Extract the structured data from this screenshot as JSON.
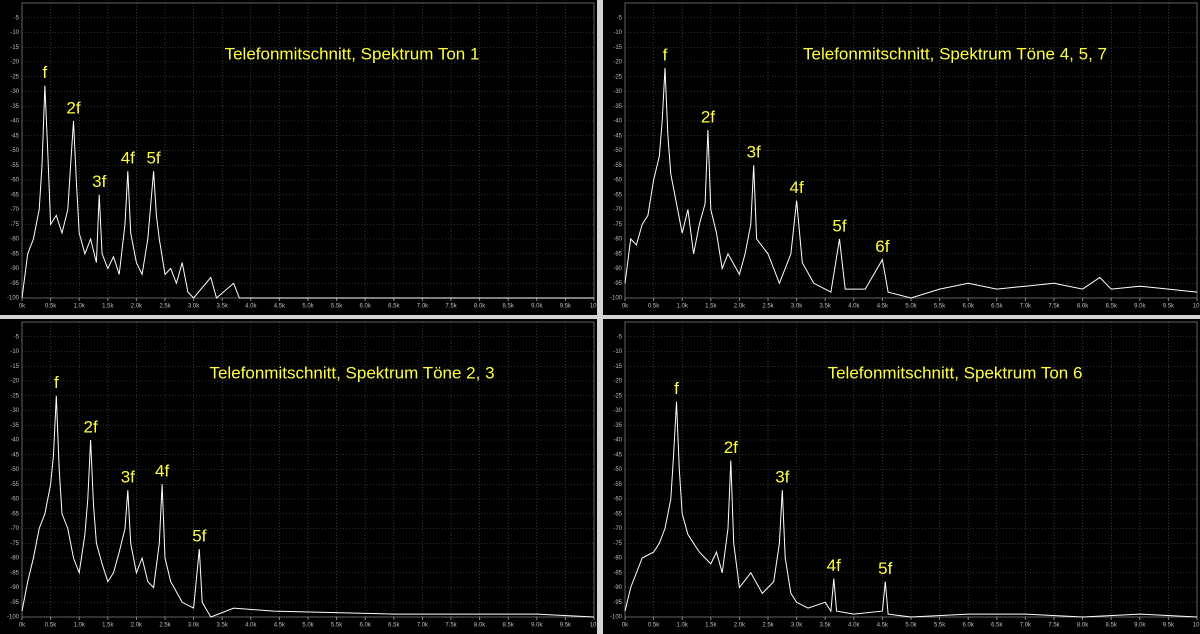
{
  "chart_data": [
    {
      "type": "line",
      "title": "Telefonmitschnitt, Spektrum Ton 1",
      "grid": true,
      "background": "#000000",
      "text_color": "#ffff40",
      "xlim": [
        0,
        10
      ],
      "ylim": [
        -100,
        0
      ],
      "xticks": [
        {
          "value": 0,
          "label": "0k"
        },
        {
          "value": 0.5,
          "label": "0.5k"
        },
        {
          "value": 1,
          "label": "1.0k"
        },
        {
          "value": 1.5,
          "label": "1.5k"
        },
        {
          "value": 2,
          "label": "2.0k"
        },
        {
          "value": 2.5,
          "label": "2.5k"
        },
        {
          "value": 3,
          "label": "3.0k"
        },
        {
          "value": 3.5,
          "label": "3.5k"
        },
        {
          "value": 4,
          "label": "4.0k"
        },
        {
          "value": 4.5,
          "label": "4.5k"
        },
        {
          "value": 5,
          "label": "5.0k"
        },
        {
          "value": 5.5,
          "label": "5.5k"
        },
        {
          "value": 6,
          "label": "6.0k"
        },
        {
          "value": 6.5,
          "label": "6.5k"
        },
        {
          "value": 7,
          "label": "7.0k"
        },
        {
          "value": 7.5,
          "label": "7.5k"
        },
        {
          "value": 8,
          "label": "8.0k"
        },
        {
          "value": 8.5,
          "label": "8.5k"
        },
        {
          "value": 9,
          "label": "9.0k"
        },
        {
          "value": 9.5,
          "label": "9.5k"
        },
        {
          "value": 10,
          "label": "10."
        }
      ],
      "yticks": [
        -5,
        -10,
        -15,
        -20,
        -25,
        -30,
        -35,
        -40,
        -45,
        -50,
        -55,
        -60,
        -65,
        -70,
        -75,
        -80,
        -85,
        -90,
        -95,
        -100
      ],
      "x": [
        0,
        0.1,
        0.2,
        0.3,
        0.35,
        0.4,
        0.45,
        0.5,
        0.6,
        0.7,
        0.8,
        0.85,
        0.9,
        0.95,
        1.0,
        1.1,
        1.2,
        1.3,
        1.35,
        1.4,
        1.5,
        1.6,
        1.7,
        1.8,
        1.85,
        1.9,
        2.0,
        2.1,
        2.2,
        2.3,
        2.35,
        2.4,
        2.5,
        2.6,
        2.7,
        2.8,
        2.9,
        3.0,
        3.3,
        3.4,
        3.7,
        3.8,
        4.5,
        10
      ],
      "series": [
        {
          "color": "#ffffff",
          "values": [
            -100,
            -85,
            -80,
            -70,
            -55,
            -28,
            -50,
            -75,
            -72,
            -78,
            -70,
            -55,
            -40,
            -60,
            -78,
            -85,
            -80,
            -88,
            -65,
            -85,
            -90,
            -86,
            -92,
            -75,
            -57,
            -78,
            -88,
            -92,
            -80,
            -57,
            -72,
            -80,
            -92,
            -90,
            -95,
            -88,
            -98,
            -100,
            -93,
            -100,
            -95,
            -100,
            -100,
            -100
          ]
        }
      ],
      "annotations": [
        {
          "text": "f",
          "x": 0.4,
          "y": -28
        },
        {
          "text": "2f",
          "x": 0.9,
          "y": -40
        },
        {
          "text": "3f",
          "x": 1.35,
          "y": -65
        },
        {
          "text": "4f",
          "x": 1.85,
          "y": -57
        },
        {
          "text": "5f",
          "x": 2.3,
          "y": -57
        }
      ]
    },
    {
      "type": "line",
      "title": "Telefonmitschnitt, Spektrum Töne 4, 5, 7",
      "grid": true,
      "background": "#000000",
      "text_color": "#ffff40",
      "xlim": [
        0,
        10
      ],
      "ylim": [
        -100,
        0
      ],
      "xticks": [
        {
          "value": 0,
          "label": "0k"
        },
        {
          "value": 0.5,
          "label": "0.5k"
        },
        {
          "value": 1,
          "label": "1.0k"
        },
        {
          "value": 1.5,
          "label": "1.5k"
        },
        {
          "value": 2,
          "label": "2.0k"
        },
        {
          "value": 2.5,
          "label": "2.5k"
        },
        {
          "value": 3,
          "label": "3.0k"
        },
        {
          "value": 3.5,
          "label": "3.5k"
        },
        {
          "value": 4,
          "label": "4.0k"
        },
        {
          "value": 4.5,
          "label": "4.5k"
        },
        {
          "value": 5,
          "label": "5.0k"
        },
        {
          "value": 5.5,
          "label": "5.5k"
        },
        {
          "value": 6,
          "label": "6.0k"
        },
        {
          "value": 6.5,
          "label": "6.5k"
        },
        {
          "value": 7,
          "label": "7.0k"
        },
        {
          "value": 7.5,
          "label": "7.5k"
        },
        {
          "value": 8,
          "label": "8.0k"
        },
        {
          "value": 8.5,
          "label": "8.5k"
        },
        {
          "value": 9,
          "label": "9.0k"
        },
        {
          "value": 9.5,
          "label": "9.5k"
        },
        {
          "value": 10,
          "label": "10."
        }
      ],
      "yticks": [
        -5,
        -10,
        -15,
        -20,
        -25,
        -30,
        -35,
        -40,
        -45,
        -50,
        -55,
        -60,
        -65,
        -70,
        -75,
        -80,
        -85,
        -90,
        -95,
        -100
      ],
      "x": [
        0,
        0.1,
        0.2,
        0.3,
        0.4,
        0.5,
        0.6,
        0.65,
        0.7,
        0.75,
        0.8,
        0.9,
        1.0,
        1.1,
        1.2,
        1.3,
        1.4,
        1.45,
        1.5,
        1.6,
        1.7,
        1.8,
        2.0,
        2.1,
        2.2,
        2.25,
        2.3,
        2.5,
        2.7,
        2.9,
        3.0,
        3.1,
        3.3,
        3.6,
        3.75,
        3.85,
        4.2,
        4.5,
        4.6,
        5.0,
        5.5,
        6.0,
        6.5,
        7.0,
        7.5,
        8.0,
        8.3,
        8.5,
        9.0,
        9.5,
        10
      ],
      "series": [
        {
          "color": "#ffffff",
          "values": [
            -95,
            -80,
            -82,
            -75,
            -72,
            -60,
            -52,
            -40,
            -22,
            -45,
            -58,
            -68,
            -78,
            -70,
            -85,
            -75,
            -68,
            -43,
            -70,
            -78,
            -90,
            -85,
            -92,
            -85,
            -75,
            -55,
            -80,
            -85,
            -95,
            -85,
            -67,
            -88,
            -95,
            -98,
            -80,
            -97,
            -97,
            -87,
            -98,
            -100,
            -97,
            -95,
            -97,
            -96,
            -95,
            -97,
            -93,
            -97,
            -96,
            -97,
            -98
          ]
        }
      ],
      "annotations": [
        {
          "text": "f",
          "x": 0.7,
          "y": -22
        },
        {
          "text": "2f",
          "x": 1.45,
          "y": -43
        },
        {
          "text": "3f",
          "x": 2.25,
          "y": -55
        },
        {
          "text": "4f",
          "x": 3.0,
          "y": -67
        },
        {
          "text": "5f",
          "x": 3.75,
          "y": -80
        },
        {
          "text": "6f",
          "x": 4.5,
          "y": -87
        }
      ]
    },
    {
      "type": "line",
      "title": "Telefonmitschnitt, Spektrum Töne 2, 3",
      "grid": true,
      "background": "#000000",
      "text_color": "#ffff40",
      "xlim": [
        0,
        10
      ],
      "ylim": [
        -100,
        0
      ],
      "xticks": [
        {
          "value": 0,
          "label": "0k"
        },
        {
          "value": 0.5,
          "label": "0.5k"
        },
        {
          "value": 1,
          "label": "1.0k"
        },
        {
          "value": 1.5,
          "label": "1.5k"
        },
        {
          "value": 2,
          "label": "2.0k"
        },
        {
          "value": 2.5,
          "label": "2.5k"
        },
        {
          "value": 3,
          "label": "3.0k"
        },
        {
          "value": 3.5,
          "label": "3.5k"
        },
        {
          "value": 4,
          "label": "4.0k"
        },
        {
          "value": 4.5,
          "label": "4.5k"
        },
        {
          "value": 5,
          "label": "5.0k"
        },
        {
          "value": 5.5,
          "label": "5.5k"
        },
        {
          "value": 6,
          "label": "6.0k"
        },
        {
          "value": 6.5,
          "label": "6.5k"
        },
        {
          "value": 7,
          "label": "7.0k"
        },
        {
          "value": 7.5,
          "label": "7.5k"
        },
        {
          "value": 8,
          "label": "8.0k"
        },
        {
          "value": 8.5,
          "label": "8.5k"
        },
        {
          "value": 9,
          "label": "9.0k"
        },
        {
          "value": 9.5,
          "label": "9.5k"
        },
        {
          "value": 10,
          "label": "10."
        }
      ],
      "yticks": [
        -5,
        -10,
        -15,
        -20,
        -25,
        -30,
        -35,
        -40,
        -45,
        -50,
        -55,
        -60,
        -65,
        -70,
        -75,
        -80,
        -85,
        -90,
        -95,
        -100
      ],
      "x": [
        0,
        0.1,
        0.2,
        0.3,
        0.4,
        0.5,
        0.55,
        0.6,
        0.65,
        0.7,
        0.8,
        0.9,
        1.0,
        1.1,
        1.15,
        1.2,
        1.25,
        1.3,
        1.4,
        1.5,
        1.6,
        1.7,
        1.8,
        1.85,
        1.9,
        2.0,
        2.1,
        2.2,
        2.3,
        2.4,
        2.45,
        2.5,
        2.6,
        2.8,
        3.0,
        3.1,
        3.15,
        3.3,
        3.7,
        4.4,
        6.5,
        9.0,
        10
      ],
      "series": [
        {
          "color": "#ffffff",
          "values": [
            -98,
            -88,
            -80,
            -70,
            -65,
            -55,
            -45,
            -25,
            -50,
            -65,
            -70,
            -80,
            -85,
            -72,
            -60,
            -40,
            -62,
            -75,
            -82,
            -88,
            -85,
            -78,
            -70,
            -57,
            -75,
            -85,
            -80,
            -88,
            -90,
            -75,
            -55,
            -80,
            -88,
            -95,
            -97,
            -77,
            -95,
            -100,
            -97,
            -98,
            -99,
            -99,
            -100
          ]
        }
      ],
      "annotations": [
        {
          "text": "f",
          "x": 0.6,
          "y": -25
        },
        {
          "text": "2f",
          "x": 1.2,
          "y": -40
        },
        {
          "text": "3f",
          "x": 1.85,
          "y": -57
        },
        {
          "text": "4f",
          "x": 2.45,
          "y": -55
        },
        {
          "text": "5f",
          "x": 3.1,
          "y": -77
        }
      ]
    },
    {
      "type": "line",
      "title": "Telefonmitschnitt, Spektrum Ton 6",
      "grid": true,
      "background": "#000000",
      "text_color": "#ffff40",
      "xlim": [
        0,
        10
      ],
      "ylim": [
        -100,
        0
      ],
      "xticks": [
        {
          "value": 0,
          "label": "0k"
        },
        {
          "value": 0.5,
          "label": "0.5k"
        },
        {
          "value": 1,
          "label": "1.0k"
        },
        {
          "value": 1.5,
          "label": "1.5k"
        },
        {
          "value": 2,
          "label": "2.0k"
        },
        {
          "value": 2.5,
          "label": "2.5k"
        },
        {
          "value": 3,
          "label": "3.0k"
        },
        {
          "value": 3.5,
          "label": "3.5k"
        },
        {
          "value": 4,
          "label": "4.0k"
        },
        {
          "value": 4.5,
          "label": "4.5k"
        },
        {
          "value": 5,
          "label": "5.0k"
        },
        {
          "value": 5.5,
          "label": "5.5k"
        },
        {
          "value": 6,
          "label": "6.0k"
        },
        {
          "value": 6.5,
          "label": "6.5k"
        },
        {
          "value": 7,
          "label": "7.0k"
        },
        {
          "value": 7.5,
          "label": "7.5k"
        },
        {
          "value": 8,
          "label": "8.0k"
        },
        {
          "value": 8.5,
          "label": "8.5k"
        },
        {
          "value": 9,
          "label": "9.0k"
        },
        {
          "value": 9.5,
          "label": "9.5k"
        },
        {
          "value": 10,
          "label": "10."
        }
      ],
      "yticks": [
        -5,
        -10,
        -15,
        -20,
        -25,
        -30,
        -35,
        -40,
        -45,
        -50,
        -55,
        -60,
        -65,
        -70,
        -75,
        -80,
        -85,
        -90,
        -95,
        -100
      ],
      "x": [
        0,
        0.1,
        0.2,
        0.3,
        0.5,
        0.6,
        0.7,
        0.8,
        0.85,
        0.9,
        0.95,
        1.0,
        1.1,
        1.2,
        1.3,
        1.4,
        1.5,
        1.6,
        1.7,
        1.8,
        1.85,
        1.9,
        2.0,
        2.2,
        2.4,
        2.6,
        2.7,
        2.75,
        2.8,
        2.9,
        3.0,
        3.2,
        3.5,
        3.6,
        3.65,
        3.7,
        4.0,
        4.5,
        4.55,
        4.6,
        5.0,
        6.0,
        7.0,
        8.0,
        9.0,
        10
      ],
      "series": [
        {
          "color": "#ffffff",
          "values": [
            -98,
            -90,
            -85,
            -80,
            -78,
            -75,
            -70,
            -60,
            -45,
            -27,
            -50,
            -65,
            -72,
            -75,
            -78,
            -80,
            -82,
            -78,
            -85,
            -70,
            -47,
            -75,
            -90,
            -85,
            -92,
            -88,
            -75,
            -57,
            -80,
            -92,
            -95,
            -97,
            -95,
            -98,
            -87,
            -98,
            -99,
            -98,
            -88,
            -99,
            -100,
            -99,
            -99,
            -100,
            -99,
            -100
          ]
        }
      ],
      "annotations": [
        {
          "text": "f",
          "x": 0.9,
          "y": -27
        },
        {
          "text": "2f",
          "x": 1.85,
          "y": -47
        },
        {
          "text": "3f",
          "x": 2.75,
          "y": -57
        },
        {
          "text": "4f",
          "x": 3.65,
          "y": -87
        },
        {
          "text": "5f",
          "x": 4.55,
          "y": -88
        }
      ]
    }
  ]
}
